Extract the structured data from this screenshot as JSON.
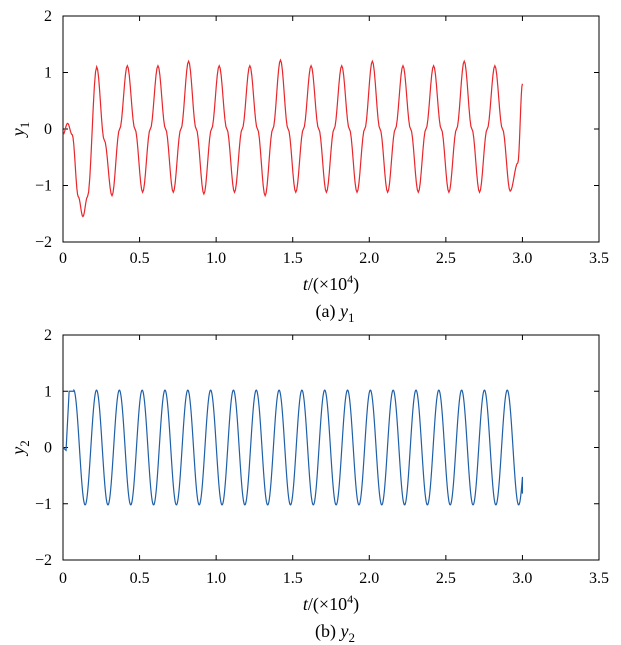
{
  "chart_data": [
    {
      "type": "line",
      "caption_prefix": "(a)",
      "caption_var": "y",
      "caption_sub": "1",
      "xlabel_var": "t",
      "xlabel_unit_open": "/(",
      "xlabel_times": "×",
      "xlabel_base": "10",
      "xlabel_exp": "4",
      "xlabel_close": ")",
      "ylabel_var": "y",
      "ylabel_sub": "1",
      "xlim": [
        0,
        3.5
      ],
      "ylim": [
        -2,
        2
      ],
      "x_ticks": [
        "0",
        "0.5",
        "1.0",
        "1.5",
        "2.0",
        "2.5",
        "3.0",
        "3.5"
      ],
      "y_ticks": [
        "−2",
        "−1",
        "0",
        "1",
        "2"
      ],
      "line_color": "#e8262b",
      "series": [
        {
          "values_desc": "t in 10^4 units",
          "x": [
            0,
            0.03,
            0.06,
            0.1,
            0.13,
            0.16,
            0.22,
            0.27,
            0.32,
            0.37,
            0.42,
            0.47,
            0.52,
            0.57,
            0.62,
            0.67,
            0.72,
            0.77,
            0.82,
            0.87,
            0.92,
            0.97,
            1.02,
            1.07,
            1.12,
            1.17,
            1.22,
            1.27,
            1.32,
            1.37,
            1.42,
            1.47,
            1.52,
            1.57,
            1.62,
            1.67,
            1.72,
            1.77,
            1.82,
            1.87,
            1.92,
            1.97,
            2.02,
            2.07,
            2.12,
            2.17,
            2.22,
            2.27,
            2.32,
            2.37,
            2.42,
            2.47,
            2.52,
            2.57,
            2.62,
            2.67,
            2.72,
            2.77,
            2.82,
            2.87,
            2.92,
            2.97,
            3.0
          ],
          "y": [
            -0.1,
            0.1,
            -0.1,
            -1.2,
            -1.55,
            -1.2,
            1.1,
            -0.2,
            -1.18,
            0.0,
            1.12,
            0.0,
            -1.12,
            0.0,
            1.12,
            0.0,
            -1.12,
            0.0,
            1.2,
            0.0,
            -1.15,
            0.0,
            1.12,
            0.0,
            -1.12,
            0.0,
            1.12,
            0.0,
            -1.18,
            0.0,
            1.22,
            0.0,
            -1.12,
            0.0,
            1.12,
            0.0,
            -1.12,
            0.0,
            1.12,
            0.0,
            -1.12,
            0.0,
            1.2,
            0.0,
            -1.12,
            0.0,
            1.12,
            0.0,
            -1.12,
            0.0,
            1.12,
            0.0,
            -1.12,
            0.0,
            1.2,
            0.0,
            -1.12,
            0.0,
            1.12,
            0.0,
            -1.1,
            -0.6,
            0.8
          ]
        }
      ]
    },
    {
      "type": "line",
      "caption_prefix": "(b)",
      "caption_var": "y",
      "caption_sub": "2",
      "xlabel_var": "t",
      "xlabel_unit_open": "/(",
      "xlabel_times": "×",
      "xlabel_base": "10",
      "xlabel_exp": "4",
      "xlabel_close": ")",
      "ylabel_var": "y",
      "ylabel_sub": "2",
      "xlim": [
        0,
        3.5
      ],
      "ylim": [
        -2,
        2
      ],
      "x_ticks": [
        "0",
        "0.5",
        "1.0",
        "1.5",
        "2.0",
        "2.5",
        "3.0",
        "3.5"
      ],
      "y_ticks": [
        "−2",
        "−1",
        "0",
        "1",
        "2"
      ],
      "line_color": "#1f5fa8",
      "series": [
        {
          "period": 0.149,
          "amplitude": 1.02,
          "t_start": 0.05,
          "t_end": 3.0,
          "initial": [
            [
              0,
              0.0
            ],
            [
              0.02,
              -0.05
            ],
            [
              0.04,
              1.0
            ],
            [
              0.07,
              1.0
            ]
          ],
          "end_value": -0.82
        }
      ]
    }
  ]
}
